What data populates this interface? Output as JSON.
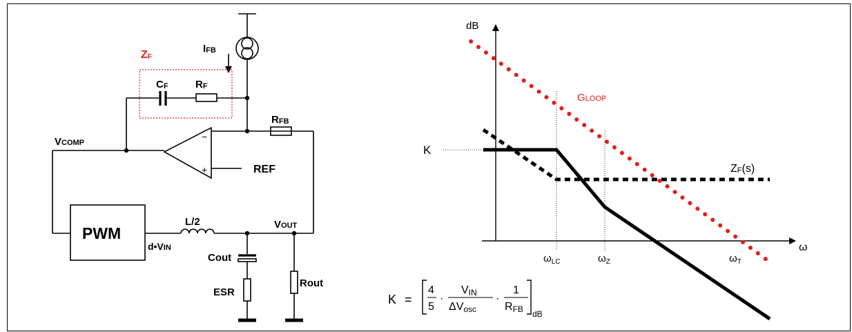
{
  "colors": {
    "red": "#e0201c",
    "black": "#000000"
  },
  "circuit": {
    "zf_main": "Z",
    "zf_sub": "F",
    "ifb_main": "I",
    "ifb_sub": "FB",
    "cf_main": "C",
    "cf_sub": "F",
    "rf_main": "R",
    "rf_sub": "F",
    "rfb_main": "R",
    "rfb_sub": "FB",
    "vcomp_main": "V",
    "vcomp_sub": "COMP",
    "minus": "−",
    "plus": "+",
    "ref": "REF",
    "pwm": "PWM",
    "l2": "L/2",
    "vout_main": "V",
    "vout_sub": "OUT",
    "dvin_main": "d•V",
    "dvin_sub": "IN",
    "cout": "Cout",
    "esr": "ESR",
    "rout": "Rout"
  },
  "bode": {
    "y_axis": "dB",
    "x_axis": "ω",
    "k_label": "K",
    "gloop_main": "G",
    "gloop_sub": "LOOP",
    "zf_main": "Z",
    "zf_sub": "F",
    "zf_tail": "(s)",
    "wlc_main": "ω",
    "wlc_sub": "LC",
    "wz_main": "ω",
    "wz_sub": "Z",
    "wt_main": "ω",
    "wt_sub": "T"
  },
  "formula": {
    "k": "K",
    "eq": "=",
    "num1": "4",
    "den1": "5",
    "dot1": "·",
    "num2_main": "V",
    "num2_sub": "IN",
    "den2_main": "ΔV",
    "den2_sub": "osc",
    "dot2": "·",
    "num3": "1",
    "den3_main": "R",
    "den3_sub": "FB",
    "db": "dB"
  }
}
